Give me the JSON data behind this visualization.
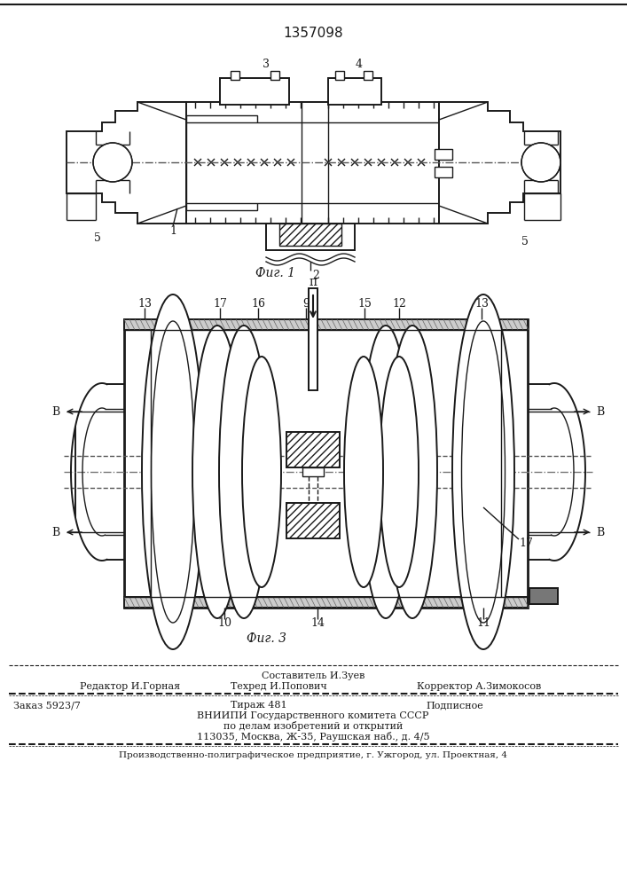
{
  "patent_number": "1357098",
  "fig1_caption": "Фиг. 1",
  "fig3_caption": "Фиг. 3",
  "footer_composer": "Составитель И.Зуев",
  "footer_editor": "Редактор И.Горная",
  "footer_techred": "Техред И.Попович",
  "footer_corrector": "Корректор А.Зимокосов",
  "footer_order": "Заказ 5923/7",
  "footer_tirazh": "Тираж 481",
  "footer_podpisnoe": "Подписное",
  "footer_vniip1": "ВНИИПИ Государственного комитета СССР",
  "footer_vniip2": "по делам изобретений и открытий",
  "footer_vniip3": "113035, Москва, Ж-35, Раушская наб., д. 4/5",
  "footer_bottom": "Производственно-полиграфическое предприятие, г. Ужгород, ул. Проектная, 4",
  "bg_color": "#ffffff",
  "line_color": "#1a1a1a"
}
